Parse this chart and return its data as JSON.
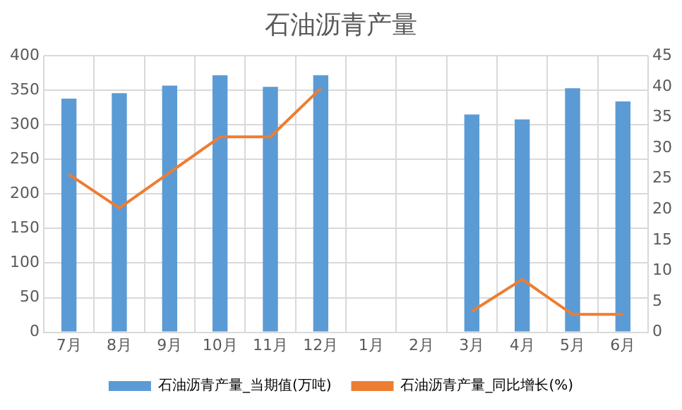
{
  "chart_data": {
    "type": "bar",
    "title": "石油沥青产量",
    "categories": [
      "7月",
      "8月",
      "9月",
      "10月",
      "11月",
      "12月",
      "1月",
      "2月",
      "3月",
      "4月",
      "5月",
      "6月"
    ],
    "series": [
      {
        "name": "石油沥青产量_当期值(万吨)",
        "color": "#5b9bd5",
        "values": [
          338,
          346,
          357,
          372,
          355,
          372,
          null,
          null,
          315,
          308,
          353,
          334
        ]
      },
      {
        "name": "石油沥青产量_同比增长(%)",
        "type": "line",
        "axis": "y2",
        "color": "#ed7d31",
        "values": [
          25.7,
          20.2,
          26,
          31.8,
          31.8,
          39.7,
          null,
          null,
          3.4,
          8.6,
          2.9,
          2.9
        ]
      }
    ],
    "ylim": [
      0,
      400
    ],
    "yticks": [
      0,
      50,
      100,
      150,
      200,
      250,
      300,
      350,
      400
    ],
    "y2lim": [
      0,
      45
    ],
    "y2ticks": [
      0,
      5,
      10,
      15,
      20,
      25,
      30,
      35,
      40,
      45
    ],
    "grid": true,
    "legend": "bottom",
    "marker": "none"
  }
}
